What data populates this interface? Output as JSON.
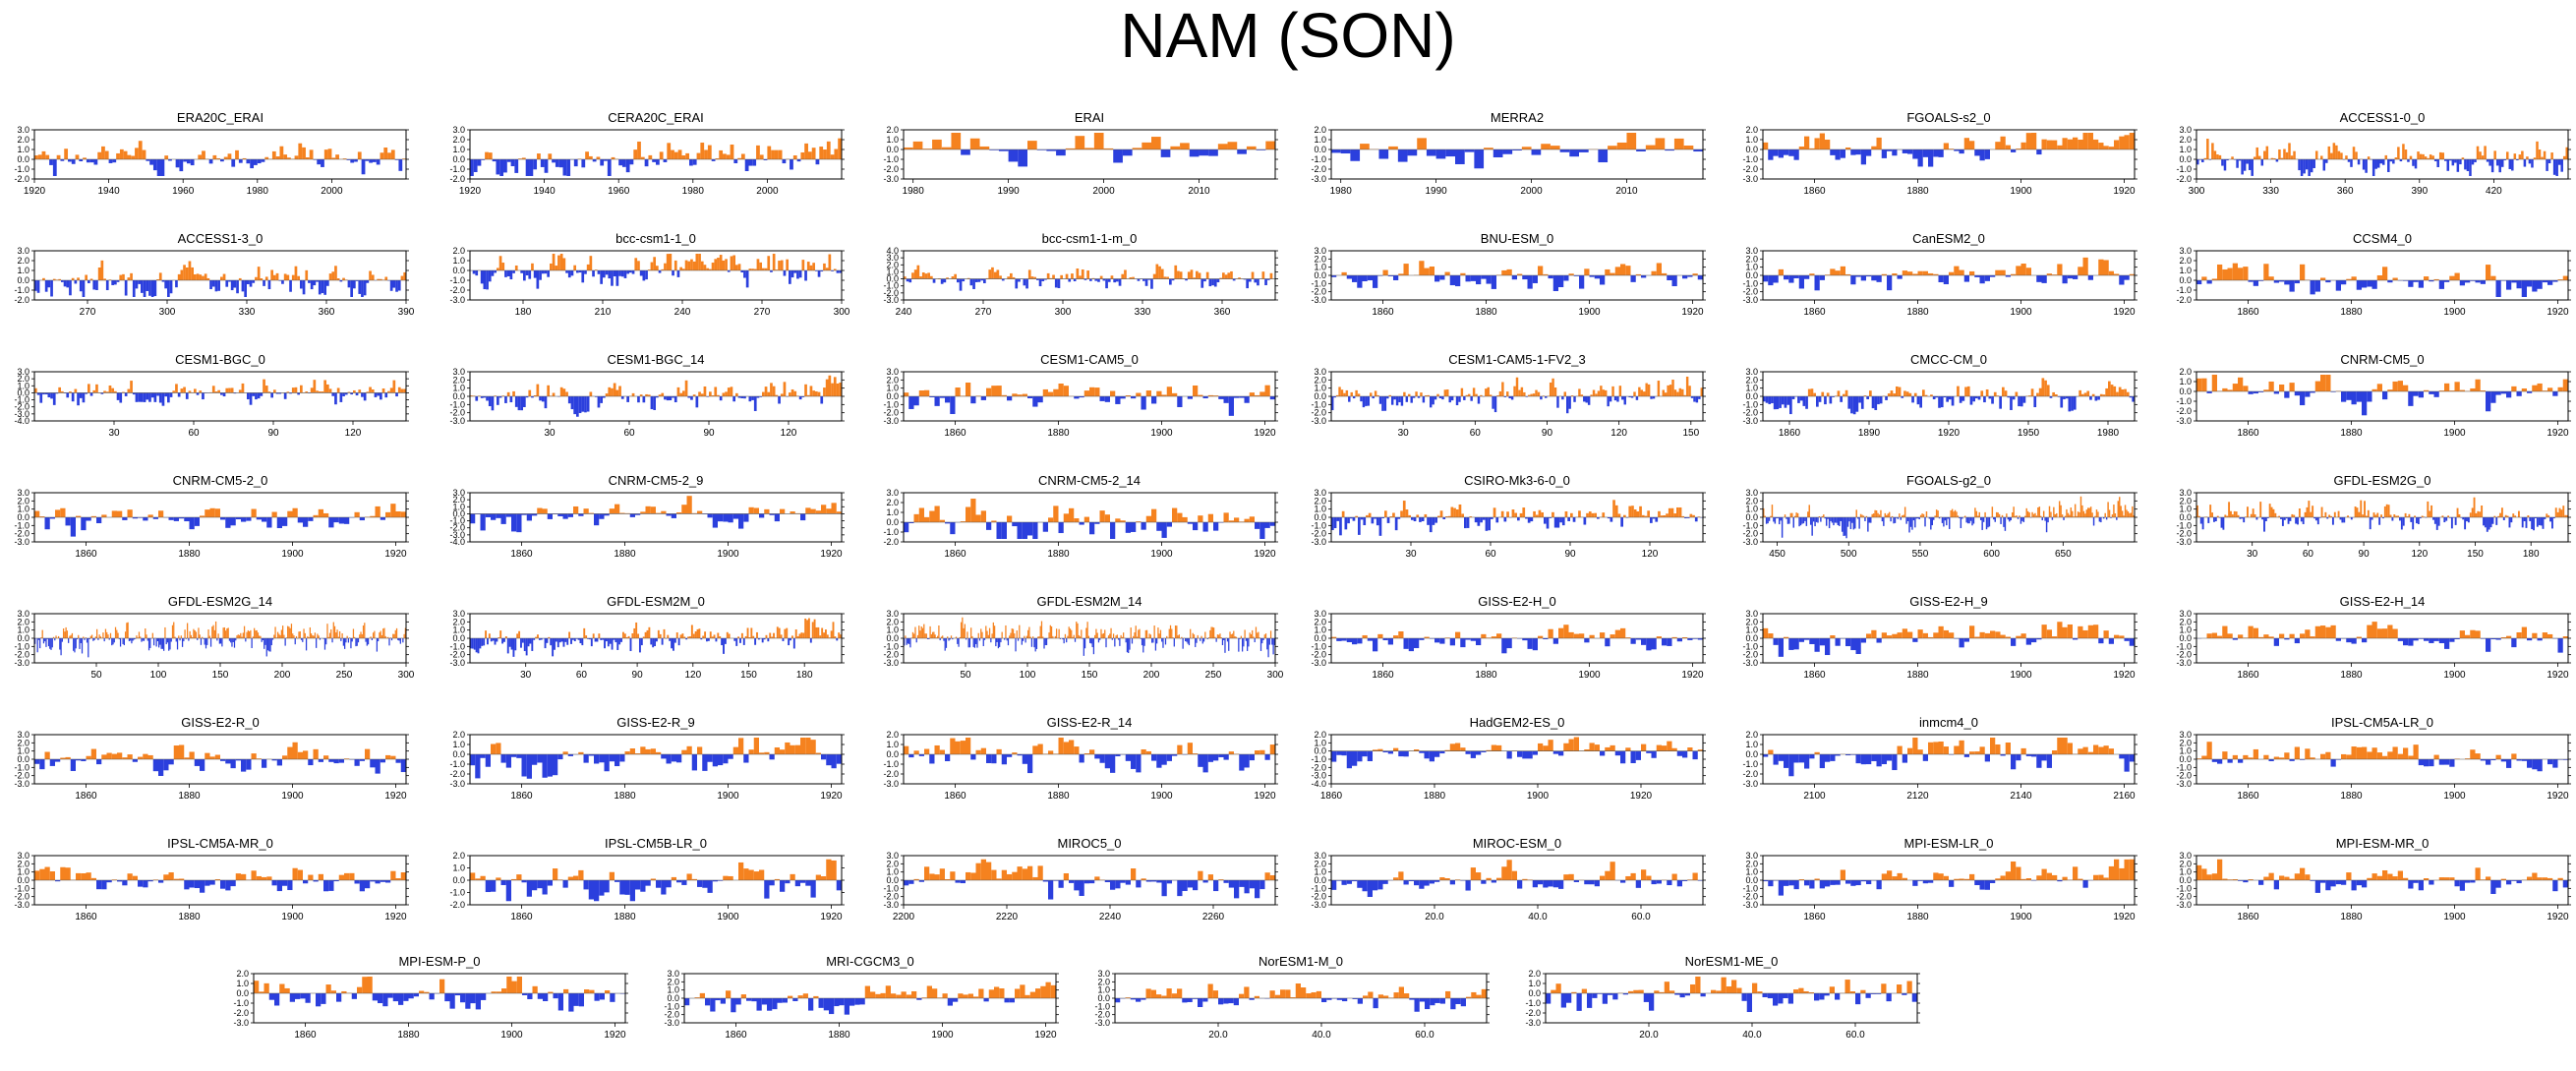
{
  "title": "NAM (SON)",
  "colors": {
    "positive": "#F5821F",
    "negative": "#2B3FDD",
    "axis": "#000000"
  },
  "chart_data": [
    {
      "type": "area",
      "title": "ERA20C_ERAI",
      "xlim": [
        1920,
        2020
      ],
      "xticks": [
        "1920",
        "1940",
        "1960",
        "1980",
        "2000"
      ],
      "ylim": [
        -2.0,
        3.0
      ],
      "yticks": [
        "-2.0",
        "-1.0",
        "0.0",
        "1.0",
        "2.0",
        "3.0"
      ],
      "n": 100,
      "seed": 1
    },
    {
      "type": "area",
      "title": "CERA20C_ERAI",
      "xlim": [
        1920,
        2020
      ],
      "xticks": [
        "1920",
        "1940",
        "1960",
        "1980",
        "2000"
      ],
      "ylim": [
        -2.0,
        3.0
      ],
      "yticks": [
        "-2.0",
        "-1.0",
        "0.0",
        "1.0",
        "2.0",
        "3.0"
      ],
      "n": 100,
      "seed": 2
    },
    {
      "type": "area",
      "title": "ERAI",
      "xlim": [
        1979,
        2018
      ],
      "xticks": [
        "1980",
        "1990",
        "2000",
        "2010"
      ],
      "ylim": [
        -3.0,
        2.0
      ],
      "yticks": [
        "-3.0",
        "-2.0",
        "-1.0",
        "0.0",
        "1.0",
        "2.0"
      ],
      "n": 39,
      "seed": 3
    },
    {
      "type": "area",
      "title": "MERRA2",
      "xlim": [
        1979,
        2018
      ],
      "xticks": [
        "1980",
        "1990",
        "2000",
        "2010"
      ],
      "ylim": [
        -3.0,
        2.0
      ],
      "yticks": [
        "-3.0",
        "-2.0",
        "-1.0",
        "0.0",
        "1.0",
        "2.0"
      ],
      "n": 39,
      "seed": 4
    },
    {
      "type": "area",
      "title": "FGOALS-s2_0",
      "xlim": [
        1850,
        1922
      ],
      "xticks": [
        "1860",
        "1880",
        "1900",
        "1920"
      ],
      "ylim": [
        -3.0,
        2.0
      ],
      "yticks": [
        "-3.0",
        "-2.0",
        "-1.0",
        "0.0",
        "1.0",
        "2.0"
      ],
      "n": 72,
      "seed": 5
    },
    {
      "type": "area",
      "title": "ACCESS1-0_0",
      "xlim": [
        300,
        450
      ],
      "xticks": [
        "300",
        "330",
        "360",
        "390",
        "420"
      ],
      "ylim": [
        -2.0,
        3.0
      ],
      "yticks": [
        "-2.0",
        "-1.0",
        "0.0",
        "1.0",
        "2.0",
        "3.0"
      ],
      "n": 150,
      "seed": 6
    },
    {
      "type": "area",
      "title": "ACCESS1-3_0",
      "xlim": [
        250,
        390
      ],
      "xticks": [
        "270",
        "300",
        "330",
        "360",
        "390"
      ],
      "ylim": [
        -2.0,
        3.0
      ],
      "yticks": [
        "-2.0",
        "-1.0",
        "0.0",
        "1.0",
        "2.0",
        "3.0"
      ],
      "n": 140,
      "seed": 7
    },
    {
      "type": "area",
      "title": "bcc-csm1-1_0",
      "xlim": [
        160,
        300
      ],
      "xticks": [
        "180",
        "210",
        "240",
        "270",
        "300"
      ],
      "ylim": [
        -3.0,
        2.0
      ],
      "yticks": [
        "-3.0",
        "-2.0",
        "-1.0",
        "0.0",
        "1.0",
        "2.0"
      ],
      "n": 140,
      "seed": 8
    },
    {
      "type": "area",
      "title": "bcc-csm1-1-m_0",
      "xlim": [
        240,
        380
      ],
      "xticks": [
        "240",
        "270",
        "300",
        "330",
        "360"
      ],
      "ylim": [
        -3.0,
        4.0
      ],
      "yticks": [
        "-3.0",
        "-2.0",
        "-1.0",
        "0.0",
        "1.0",
        "2.0",
        "3.0",
        "4.0"
      ],
      "n": 140,
      "seed": 9
    },
    {
      "type": "area",
      "title": "BNU-ESM_0",
      "xlim": [
        1850,
        1922
      ],
      "xticks": [
        "1860",
        "1880",
        "1900",
        "1920"
      ],
      "ylim": [
        -3.0,
        3.0
      ],
      "yticks": [
        "-3.0",
        "-2.0",
        "-1.0",
        "0.0",
        "1.0",
        "2.0",
        "3.0"
      ],
      "n": 72,
      "seed": 10
    },
    {
      "type": "area",
      "title": "CanESM2_0",
      "xlim": [
        1850,
        1922
      ],
      "xticks": [
        "1860",
        "1880",
        "1900",
        "1920"
      ],
      "ylim": [
        -3.0,
        3.0
      ],
      "yticks": [
        "-3.0",
        "-2.0",
        "-1.0",
        "0.0",
        "1.0",
        "2.0",
        "3.0"
      ],
      "n": 72,
      "seed": 11
    },
    {
      "type": "area",
      "title": "CCSM4_0",
      "xlim": [
        1850,
        1922
      ],
      "xticks": [
        "1860",
        "1880",
        "1900",
        "1920"
      ],
      "ylim": [
        -2.0,
        3.0
      ],
      "yticks": [
        "-2.0",
        "-1.0",
        "0.0",
        "1.0",
        "2.0",
        "3.0"
      ],
      "n": 72,
      "seed": 12
    },
    {
      "type": "area",
      "title": "CESM1-BGC_0",
      "xlim": [
        0,
        140
      ],
      "xticks": [
        "30",
        "60",
        "90",
        "120"
      ],
      "ylim": [
        -4.0,
        3.0
      ],
      "yticks": [
        "-4.0",
        "-3.0",
        "-2.0",
        "-1.0",
        "0.0",
        "1.0",
        "2.0",
        "3.0"
      ],
      "n": 140,
      "seed": 13
    },
    {
      "type": "area",
      "title": "CESM1-BGC_14",
      "xlim": [
        0,
        140
      ],
      "xticks": [
        "30",
        "60",
        "90",
        "120"
      ],
      "ylim": [
        -3.0,
        3.0
      ],
      "yticks": [
        "-3.0",
        "-2.0",
        "-1.0",
        "0.0",
        "1.0",
        "2.0",
        "3.0"
      ],
      "n": 140,
      "seed": 14
    },
    {
      "type": "area",
      "title": "CESM1-CAM5_0",
      "xlim": [
        1850,
        1922
      ],
      "xticks": [
        "1860",
        "1880",
        "1900",
        "1920"
      ],
      "ylim": [
        -3.0,
        3.0
      ],
      "yticks": [
        "-3.0",
        "-2.0",
        "-1.0",
        "0.0",
        "1.0",
        "2.0",
        "3.0"
      ],
      "n": 72,
      "seed": 15
    },
    {
      "type": "area",
      "title": "CESM1-CAM5-1-FV2_3",
      "xlim": [
        0,
        155
      ],
      "xticks": [
        "30",
        "60",
        "90",
        "120",
        "150"
      ],
      "ylim": [
        -3.0,
        3.0
      ],
      "yticks": [
        "-3.0",
        "-2.0",
        "-1.0",
        "0.0",
        "1.0",
        "2.0",
        "3.0"
      ],
      "n": 155,
      "seed": 16
    },
    {
      "type": "area",
      "title": "CMCC-CM_0",
      "xlim": [
        1850,
        1990
      ],
      "xticks": [
        "1860",
        "1890",
        "1920",
        "1950",
        "1980"
      ],
      "ylim": [
        -3.0,
        3.0
      ],
      "yticks": [
        "-3.0",
        "-2.0",
        "-1.0",
        "0.0",
        "1.0",
        "2.0",
        "3.0"
      ],
      "n": 140,
      "seed": 17
    },
    {
      "type": "area",
      "title": "CNRM-CM5_0",
      "xlim": [
        1850,
        1922
      ],
      "xticks": [
        "1860",
        "1880",
        "1900",
        "1920"
      ],
      "ylim": [
        -3.0,
        2.0
      ],
      "yticks": [
        "-3.0",
        "-2.0",
        "-1.0",
        "0.0",
        "1.0",
        "2.0"
      ],
      "n": 72,
      "seed": 18
    },
    {
      "type": "area",
      "title": "CNRM-CM5-2_0",
      "xlim": [
        1850,
        1922
      ],
      "xticks": [
        "1860",
        "1880",
        "1900",
        "1920"
      ],
      "ylim": [
        -3.0,
        3.0
      ],
      "yticks": [
        "-3.0",
        "-2.0",
        "-1.0",
        "0.0",
        "1.0",
        "2.0",
        "3.0"
      ],
      "n": 72,
      "seed": 19
    },
    {
      "type": "area",
      "title": "CNRM-CM5-2_9",
      "xlim": [
        1850,
        1922
      ],
      "xticks": [
        "1860",
        "1880",
        "1900",
        "1920"
      ],
      "ylim": [
        -4.0,
        3.0
      ],
      "yticks": [
        "-4.0",
        "-3.0",
        "-2.0",
        "-1.0",
        "0.0",
        "1.0",
        "2.0",
        "3.0"
      ],
      "n": 72,
      "seed": 20
    },
    {
      "type": "area",
      "title": "CNRM-CM5-2_14",
      "xlim": [
        1850,
        1922
      ],
      "xticks": [
        "1860",
        "1880",
        "1900",
        "1920"
      ],
      "ylim": [
        -2.0,
        3.0
      ],
      "yticks": [
        "-2.0",
        "-1.0",
        "0.0",
        "1.0",
        "2.0",
        "3.0"
      ],
      "n": 72,
      "seed": 21
    },
    {
      "type": "area",
      "title": "CSIRO-Mk3-6-0_0",
      "xlim": [
        0,
        140
      ],
      "xticks": [
        "30",
        "60",
        "90",
        "120"
      ],
      "ylim": [
        -3.0,
        3.0
      ],
      "yticks": [
        "-3.0",
        "-2.0",
        "-1.0",
        "0.0",
        "1.0",
        "2.0",
        "3.0"
      ],
      "n": 140,
      "seed": 22
    },
    {
      "type": "area",
      "title": "FGOALS-g2_0",
      "xlim": [
        440,
        700
      ],
      "xticks": [
        "450",
        "500",
        "550",
        "600",
        "650"
      ],
      "ylim": [
        -3.0,
        3.0
      ],
      "yticks": [
        "-3.0",
        "-2.0",
        "-1.0",
        "0.0",
        "1.0",
        "2.0",
        "3.0"
      ],
      "n": 260,
      "seed": 23
    },
    {
      "type": "area",
      "title": "GFDL-ESM2G_0",
      "xlim": [
        0,
        200
      ],
      "xticks": [
        "30",
        "60",
        "90",
        "120",
        "150",
        "180"
      ],
      "ylim": [
        -3.0,
        3.0
      ],
      "yticks": [
        "-3.0",
        "-2.0",
        "-1.0",
        "0.0",
        "1.0",
        "2.0",
        "3.0"
      ],
      "n": 200,
      "seed": 24
    },
    {
      "type": "area",
      "title": "GFDL-ESM2G_14",
      "xlim": [
        0,
        300
      ],
      "xticks": [
        "50",
        "100",
        "150",
        "200",
        "250",
        "300"
      ],
      "ylim": [
        -3.0,
        3.0
      ],
      "yticks": [
        "-3.0",
        "-2.0",
        "-1.0",
        "0.0",
        "1.0",
        "2.0",
        "3.0"
      ],
      "n": 300,
      "seed": 25
    },
    {
      "type": "area",
      "title": "GFDL-ESM2M_0",
      "xlim": [
        0,
        200
      ],
      "xticks": [
        "30",
        "60",
        "90",
        "120",
        "150",
        "180"
      ],
      "ylim": [
        -3.0,
        3.0
      ],
      "yticks": [
        "-3.0",
        "-2.0",
        "-1.0",
        "0.0",
        "1.0",
        "2.0",
        "3.0"
      ],
      "n": 200,
      "seed": 26
    },
    {
      "type": "area",
      "title": "GFDL-ESM2M_14",
      "xlim": [
        0,
        300
      ],
      "xticks": [
        "50",
        "100",
        "150",
        "200",
        "250",
        "300"
      ],
      "ylim": [
        -3.0,
        3.0
      ],
      "yticks": [
        "-3.0",
        "-2.0",
        "-1.0",
        "0.0",
        "1.0",
        "2.0",
        "3.0"
      ],
      "n": 300,
      "seed": 27
    },
    {
      "type": "area",
      "title": "GISS-E2-H_0",
      "xlim": [
        1850,
        1922
      ],
      "xticks": [
        "1860",
        "1880",
        "1900",
        "1920"
      ],
      "ylim": [
        -3.0,
        3.0
      ],
      "yticks": [
        "-3.0",
        "-2.0",
        "-1.0",
        "0.0",
        "1.0",
        "2.0",
        "3.0"
      ],
      "n": 72,
      "seed": 28
    },
    {
      "type": "area",
      "title": "GISS-E2-H_9",
      "xlim": [
        1850,
        1922
      ],
      "xticks": [
        "1860",
        "1880",
        "1900",
        "1920"
      ],
      "ylim": [
        -3.0,
        3.0
      ],
      "yticks": [
        "-3.0",
        "-2.0",
        "-1.0",
        "0.0",
        "1.0",
        "2.0",
        "3.0"
      ],
      "n": 72,
      "seed": 29
    },
    {
      "type": "area",
      "title": "GISS-E2-H_14",
      "xlim": [
        1850,
        1922
      ],
      "xticks": [
        "1860",
        "1880",
        "1900",
        "1920"
      ],
      "ylim": [
        -3.0,
        3.0
      ],
      "yticks": [
        "-3.0",
        "-2.0",
        "-1.0",
        "0.0",
        "1.0",
        "2.0",
        "3.0"
      ],
      "n": 72,
      "seed": 30
    },
    {
      "type": "area",
      "title": "GISS-E2-R_0",
      "xlim": [
        1850,
        1922
      ],
      "xticks": [
        "1860",
        "1880",
        "1900",
        "1920"
      ],
      "ylim": [
        -3.0,
        3.0
      ],
      "yticks": [
        "-3.0",
        "-2.0",
        "-1.0",
        "0.0",
        "1.0",
        "2.0",
        "3.0"
      ],
      "n": 72,
      "seed": 31
    },
    {
      "type": "area",
      "title": "GISS-E2-R_9",
      "xlim": [
        1850,
        1922
      ],
      "xticks": [
        "1860",
        "1880",
        "1900",
        "1920"
      ],
      "ylim": [
        -3.0,
        2.0
      ],
      "yticks": [
        "-3.0",
        "-2.0",
        "-1.0",
        "0.0",
        "1.0",
        "2.0"
      ],
      "n": 72,
      "seed": 32
    },
    {
      "type": "area",
      "title": "GISS-E2-R_14",
      "xlim": [
        1850,
        1922
      ],
      "xticks": [
        "1860",
        "1880",
        "1900",
        "1920"
      ],
      "ylim": [
        -3.0,
        2.0
      ],
      "yticks": [
        "-3.0",
        "-2.0",
        "-1.0",
        "0.0",
        "1.0",
        "2.0"
      ],
      "n": 72,
      "seed": 33
    },
    {
      "type": "area",
      "title": "HadGEM2-ES_0",
      "xlim": [
        1860,
        1932
      ],
      "xticks": [
        "1860",
        "1880",
        "1900",
        "1920"
      ],
      "ylim": [
        -4.0,
        2.0
      ],
      "yticks": [
        "-4.0",
        "-3.0",
        "-2.0",
        "-1.0",
        "0.0",
        "1.0",
        "2.0"
      ],
      "n": 72,
      "seed": 34
    },
    {
      "type": "area",
      "title": "inmcm4_0",
      "xlim": [
        2090,
        2162
      ],
      "xticks": [
        "2100",
        "2120",
        "2140",
        "2160"
      ],
      "ylim": [
        -3.0,
        2.0
      ],
      "yticks": [
        "-3.0",
        "-2.0",
        "-1.0",
        "0.0",
        "1.0",
        "2.0"
      ],
      "n": 72,
      "seed": 35
    },
    {
      "type": "area",
      "title": "IPSL-CM5A-LR_0",
      "xlim": [
        1850,
        1922
      ],
      "xticks": [
        "1860",
        "1880",
        "1900",
        "1920"
      ],
      "ylim": [
        -3.0,
        3.0
      ],
      "yticks": [
        "-3.0",
        "-2.0",
        "-1.0",
        "0.0",
        "1.0",
        "2.0",
        "3.0"
      ],
      "n": 72,
      "seed": 36
    },
    {
      "type": "area",
      "title": "IPSL-CM5A-MR_0",
      "xlim": [
        1850,
        1922
      ],
      "xticks": [
        "1860",
        "1880",
        "1900",
        "1920"
      ],
      "ylim": [
        -3.0,
        3.0
      ],
      "yticks": [
        "-3.0",
        "-2.0",
        "-1.0",
        "0.0",
        "1.0",
        "2.0",
        "3.0"
      ],
      "n": 72,
      "seed": 37
    },
    {
      "type": "area",
      "title": "IPSL-CM5B-LR_0",
      "xlim": [
        1850,
        1922
      ],
      "xticks": [
        "1860",
        "1880",
        "1900",
        "1920"
      ],
      "ylim": [
        -2.0,
        2.0
      ],
      "yticks": [
        "-2.0",
        "-1.0",
        "0.0",
        "1.0",
        "2.0"
      ],
      "n": 72,
      "seed": 38
    },
    {
      "type": "area",
      "title": "MIROC5_0",
      "xlim": [
        2200,
        2272
      ],
      "xticks": [
        "2200",
        "2220",
        "2240",
        "2260"
      ],
      "ylim": [
        -3.0,
        3.0
      ],
      "yticks": [
        "-3.0",
        "-2.0",
        "-1.0",
        "0.0",
        "1.0",
        "2.0",
        "3.0"
      ],
      "n": 72,
      "seed": 39
    },
    {
      "type": "area",
      "title": "MIROC-ESM_0",
      "xlim": [
        0,
        72
      ],
      "xticks": [
        "20.0",
        "40.0",
        "60.0"
      ],
      "ylim": [
        -3.0,
        3.0
      ],
      "yticks": [
        "-3.0",
        "-2.0",
        "-1.0",
        "0.0",
        "1.0",
        "2.0",
        "3.0"
      ],
      "n": 72,
      "seed": 40
    },
    {
      "type": "area",
      "title": "MPI-ESM-LR_0",
      "xlim": [
        1850,
        1922
      ],
      "xticks": [
        "1860",
        "1880",
        "1900",
        "1920"
      ],
      "ylim": [
        -3.0,
        3.0
      ],
      "yticks": [
        "-3.0",
        "-2.0",
        "-1.0",
        "0.0",
        "1.0",
        "2.0",
        "3.0"
      ],
      "n": 72,
      "seed": 41
    },
    {
      "type": "area",
      "title": "MPI-ESM-MR_0",
      "xlim": [
        1850,
        1922
      ],
      "xticks": [
        "1860",
        "1880",
        "1900",
        "1920"
      ],
      "ylim": [
        -3.0,
        3.0
      ],
      "yticks": [
        "-3.0",
        "-2.0",
        "-1.0",
        "0.0",
        "1.0",
        "2.0",
        "3.0"
      ],
      "n": 72,
      "seed": 42
    },
    {
      "type": "area",
      "title": "MPI-ESM-P_0",
      "xlim": [
        1850,
        1922
      ],
      "xticks": [
        "1860",
        "1880",
        "1900",
        "1920"
      ],
      "ylim": [
        -3.0,
        2.0
      ],
      "yticks": [
        "-3.0",
        "-2.0",
        "-1.0",
        "0.0",
        "1.0",
        "2.0"
      ],
      "n": 72,
      "seed": 43
    },
    {
      "type": "area",
      "title": "MRI-CGCM3_0",
      "xlim": [
        1850,
        1922
      ],
      "xticks": [
        "1860",
        "1880",
        "1900",
        "1920"
      ],
      "ylim": [
        -3.0,
        3.0
      ],
      "yticks": [
        "-3.0",
        "-2.0",
        "-1.0",
        "0.0",
        "1.0",
        "2.0",
        "3.0"
      ],
      "n": 72,
      "seed": 44
    },
    {
      "type": "area",
      "title": "NorESM1-M_0",
      "xlim": [
        0,
        72
      ],
      "xticks": [
        "20.0",
        "40.0",
        "60.0"
      ],
      "ylim": [
        -3.0,
        3.0
      ],
      "yticks": [
        "-3.0",
        "-2.0",
        "-1.0",
        "0.0",
        "1.0",
        "2.0",
        "3.0"
      ],
      "n": 72,
      "seed": 45
    },
    {
      "type": "area",
      "title": "NorESM1-ME_0",
      "xlim": [
        0,
        72
      ],
      "xticks": [
        "20.0",
        "40.0",
        "60.0"
      ],
      "ylim": [
        -3.0,
        2.0
      ],
      "yticks": [
        "-3.0",
        "-2.0",
        "-1.0",
        "0.0",
        "1.0",
        "2.0"
      ],
      "n": 72,
      "seed": 46
    }
  ]
}
